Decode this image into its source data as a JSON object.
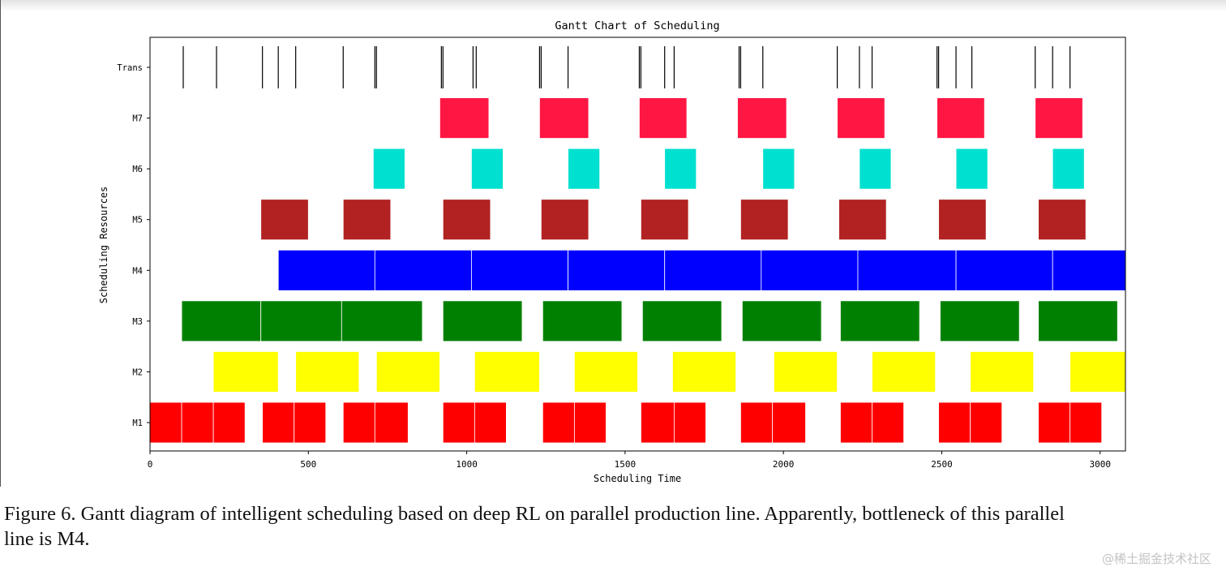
{
  "chart_data": {
    "type": "gantt",
    "title": "Gantt Chart of Scheduling",
    "xlabel": "Scheduling Time",
    "ylabel": "Scheduling Resources",
    "xlim": [
      0,
      3080
    ],
    "xticks": [
      0,
      500,
      1000,
      1500,
      2000,
      2500,
      3000
    ],
    "resources": [
      "M1",
      "M2",
      "M3",
      "M4",
      "M5",
      "M6",
      "M7",
      "Trans"
    ],
    "colors": {
      "M1": "#ff0000",
      "M2": "#ffff00",
      "M3": "#008000",
      "M4": "#0000ff",
      "M5": "#b22222",
      "M6": "#00e0d0",
      "M7": "#ff1744",
      "Trans": "#000000"
    },
    "tasks": {
      "M1": [
        [
          0,
          100
        ],
        [
          100,
          200
        ],
        [
          200,
          300
        ],
        [
          355,
          455
        ],
        [
          455,
          555
        ],
        [
          610,
          710
        ],
        [
          710,
          815
        ],
        [
          925,
          1025
        ],
        [
          1025,
          1125
        ],
        [
          1240,
          1340
        ],
        [
          1340,
          1440
        ],
        [
          1550,
          1655
        ],
        [
          1655,
          1755
        ],
        [
          1865,
          1965
        ],
        [
          1965,
          2070
        ],
        [
          2180,
          2280
        ],
        [
          2280,
          2380
        ],
        [
          2490,
          2590
        ],
        [
          2590,
          2690
        ],
        [
          2805,
          2905
        ],
        [
          2905,
          3005
        ]
      ],
      "M2": [
        [
          200,
          405
        ],
        [
          460,
          660
        ],
        [
          715,
          915
        ],
        [
          1025,
          1230
        ],
        [
          1340,
          1540
        ],
        [
          1650,
          1850
        ],
        [
          1970,
          2170
        ],
        [
          2280,
          2480
        ],
        [
          2590,
          2790
        ],
        [
          2905,
          3080
        ]
      ],
      "M3": [
        [
          100,
          350
        ],
        [
          350,
          605
        ],
        [
          605,
          860
        ],
        [
          925,
          1175
        ],
        [
          1240,
          1490
        ],
        [
          1555,
          1805
        ],
        [
          1870,
          2120
        ],
        [
          2180,
          2430
        ],
        [
          2495,
          2745
        ],
        [
          2805,
          3055
        ]
      ],
      "M4": [
        [
          405,
          710
        ],
        [
          710,
          1015
        ],
        [
          1015,
          1320
        ],
        [
          1320,
          1625
        ],
        [
          1625,
          1930
        ],
        [
          1930,
          2235
        ],
        [
          2235,
          2545
        ],
        [
          2545,
          2850
        ],
        [
          2850,
          3080
        ]
      ],
      "M5": [
        [
          350,
          500
        ],
        [
          610,
          760
        ],
        [
          925,
          1075
        ],
        [
          1235,
          1385
        ],
        [
          1550,
          1700
        ],
        [
          1865,
          2015
        ],
        [
          2175,
          2325
        ],
        [
          2490,
          2640
        ],
        [
          2805,
          2955
        ]
      ],
      "M6": [
        [
          705,
          805
        ],
        [
          1015,
          1115
        ],
        [
          1320,
          1420
        ],
        [
          1625,
          1725
        ],
        [
          1935,
          2035
        ],
        [
          2240,
          2340
        ],
        [
          2545,
          2645
        ],
        [
          2850,
          2950
        ]
      ],
      "M7": [
        [
          915,
          1070
        ],
        [
          1230,
          1385
        ],
        [
          1545,
          1695
        ],
        [
          1855,
          2010
        ],
        [
          2170,
          2320
        ],
        [
          2485,
          2635
        ],
        [
          2795,
          2945
        ]
      ]
    },
    "trans_events": [
      105,
      210,
      355,
      405,
      460,
      610,
      710,
      715,
      920,
      925,
      1020,
      1030,
      1230,
      1235,
      1320,
      1545,
      1550,
      1625,
      1655,
      1860,
      1865,
      1935,
      2170,
      2240,
      2280,
      2485,
      2490,
      2545,
      2595,
      2795,
      2850,
      2905
    ],
    "legend": "none",
    "grid": false
  },
  "caption": {
    "line1": "Figure  6.    Gantt diagram of intelligent scheduling based on deep RL on parallel production line. Apparently, bottleneck of this parallel",
    "line2": "line is M4."
  },
  "watermark": "@稀土掘金技术社区"
}
